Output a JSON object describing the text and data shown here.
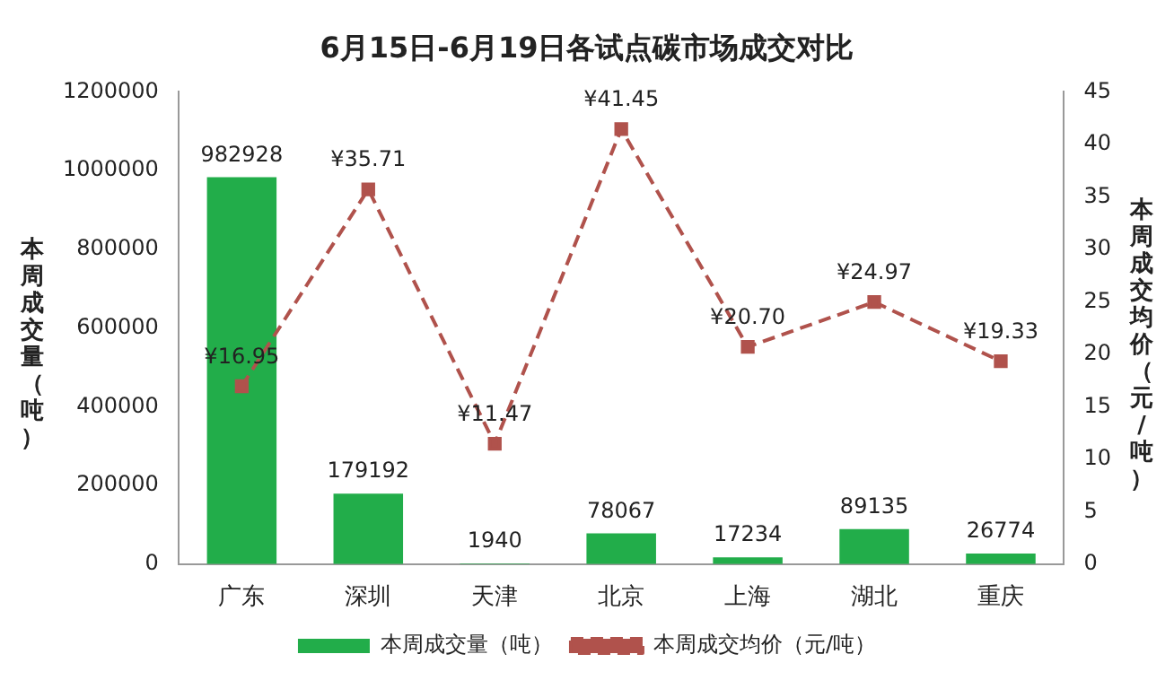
{
  "chart_data": {
    "type": "bar",
    "title": "6月15日-6月19日各试点碳市场成交对比",
    "ylabel": "本周成交量（吨）",
    "y2label": "本周成交均价（元/吨）",
    "categories": [
      "广东",
      "深圳",
      "天津",
      "北京",
      "上海",
      "湖北",
      "重庆"
    ],
    "series": [
      {
        "name": "本周成交量（吨）",
        "color": "#22ad4a",
        "values": [
          982928,
          179192,
          1940,
          78067,
          17234,
          89135,
          26774
        ],
        "value_labels": [
          "982928",
          "179192",
          "1940",
          "78067",
          "17234",
          "89135",
          "26774"
        ]
      },
      {
        "name": "本周成交均价（元/吨）",
        "type": "line",
        "axis": "y2",
        "color": "#b0524c",
        "line_style": "dashed",
        "marker": "square",
        "values": [
          16.95,
          35.71,
          11.47,
          41.45,
          20.7,
          24.97,
          19.33
        ],
        "value_labels": [
          "¥16.95",
          "¥35.71",
          "¥11.47",
          "¥41.45",
          "¥20.70",
          "¥24.97",
          "¥19.33"
        ]
      }
    ],
    "ylim": [
      0,
      1200000
    ],
    "yticks": [
      0,
      200000,
      400000,
      600000,
      800000,
      1000000,
      1200000
    ],
    "y2lim": [
      0,
      45
    ],
    "y2ticks": [
      0,
      5,
      10,
      15,
      20,
      25,
      30,
      35,
      40,
      45
    ],
    "grid": false,
    "legend": "bottom"
  }
}
